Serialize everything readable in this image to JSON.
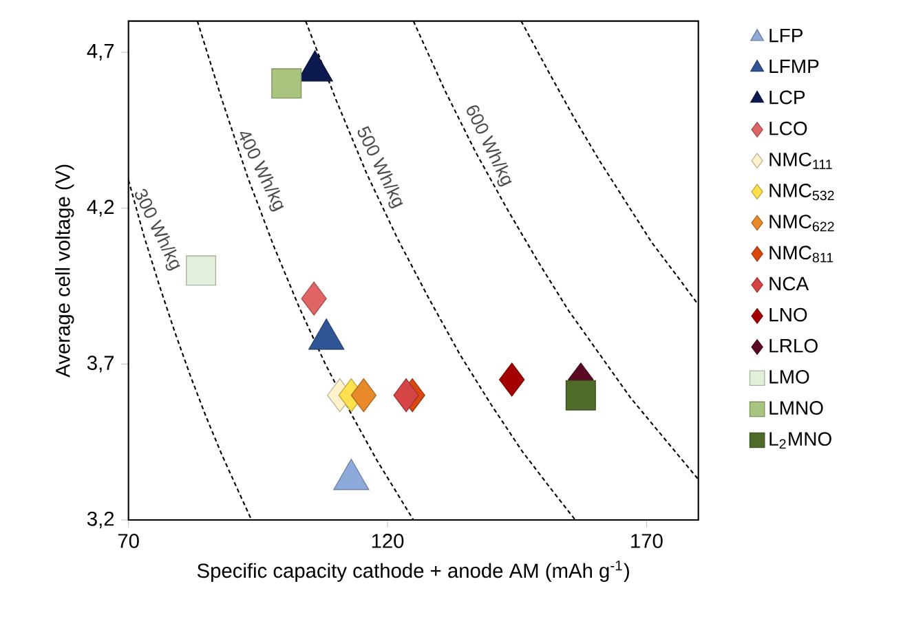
{
  "chart_data": {
    "type": "scatter",
    "xlabel": "Specific capacity cathode + anode AM (mAh g$^{-1}$)",
    "ylabel": "Average cell voltage (V)",
    "xlim": [
      70,
      180
    ],
    "ylim": [
      3.2,
      4.8
    ],
    "xticks": [
      70,
      120,
      170
    ],
    "yticks": [
      {
        "value": 3.2,
        "label": "3,2"
      },
      {
        "value": 3.7,
        "label": "3,7"
      },
      {
        "value": 4.2,
        "label": "4,2"
      },
      {
        "value": 4.7,
        "label": "4,7"
      }
    ],
    "grid": false,
    "legend": "right",
    "series": [
      {
        "name": "LFP",
        "color": "#8eaadb",
        "marker": "triangle",
        "x": [
          113
        ],
        "values": [
          3.33
        ]
      },
      {
        "name": "LFMP",
        "color": "#2f5597",
        "marker": "triangle",
        "x": [
          108.2
        ],
        "values": [
          3.78
        ]
      },
      {
        "name": "LCP",
        "color": "#0c1a4f",
        "marker": "triangle",
        "x": [
          106
        ],
        "values": [
          4.64
        ]
      },
      {
        "name": "LCO",
        "color": "#e06666",
        "marker": "diamond",
        "x": [
          105.8
        ],
        "values": [
          3.91
        ]
      },
      {
        "name": "NMC$_{111}$",
        "color": "#fff2cc",
        "marker": "diamond",
        "x": [
          110.8
        ],
        "values": [
          3.6
        ]
      },
      {
        "name": "NMC$_{532}$",
        "color": "#ffe04d",
        "marker": "diamond",
        "x": [
          113
        ],
        "values": [
          3.6
        ]
      },
      {
        "name": "NMC$_{622}$",
        "color": "#e8892a",
        "marker": "diamond",
        "x": [
          115.4
        ],
        "values": [
          3.6
        ]
      },
      {
        "name": "NMC$_{811}$",
        "color": "#d9480f",
        "marker": "diamond",
        "x": [
          124.8
        ],
        "values": [
          3.6
        ]
      },
      {
        "name": "NCA",
        "color": "#d64545",
        "marker": "diamond",
        "x": [
          123.6
        ],
        "values": [
          3.6
        ]
      },
      {
        "name": "LNO",
        "color": "#a50000",
        "marker": "diamond",
        "x": [
          144
        ],
        "values": [
          3.65
        ]
      },
      {
        "name": "LRLO",
        "color": "#5c0a24",
        "marker": "diamond",
        "x": [
          157.3
        ],
        "values": [
          3.65
        ]
      },
      {
        "name": "LMO",
        "color": "#e2efda",
        "marker": "square",
        "x": [
          84
        ],
        "values": [
          4.0
        ]
      },
      {
        "name": "LMNO",
        "color": "#a9c47f",
        "marker": "square",
        "x": [
          100.5
        ],
        "values": [
          4.6
        ]
      },
      {
        "name": "L$_{2}$MNO",
        "color": "#4e6b2a",
        "marker": "square",
        "x": [
          157.3
        ],
        "values": [
          3.6
        ]
      },
      {
        "type": "line",
        "color": "#000000",
        "line_style": "dashed",
        "marker": "none",
        "x": [
          70,
          73,
          76,
          79,
          82,
          85,
          88,
          91,
          93.75
        ],
        "values": [
          4.29,
          4.11,
          3.95,
          3.8,
          3.66,
          3.53,
          3.41,
          3.3,
          3.2
        ]
      },
      {
        "type": "line",
        "color": "#000000",
        "line_style": "dashed",
        "marker": "none",
        "x": [
          83.3,
          88,
          93,
          98,
          103,
          108,
          113,
          118,
          125
        ],
        "values": [
          4.8,
          4.55,
          4.3,
          4.08,
          3.88,
          3.7,
          3.54,
          3.39,
          3.2
        ]
      },
      {
        "type": "line",
        "color": "#000000",
        "line_style": "dashed",
        "marker": "none",
        "x": [
          104.2,
          110,
          116,
          122,
          128,
          134,
          140,
          146,
          152,
          156.25
        ],
        "values": [
          4.8,
          4.55,
          4.31,
          4.1,
          3.91,
          3.73,
          3.57,
          3.42,
          3.29,
          3.2
        ]
      },
      {
        "type": "line",
        "color": "#000000",
        "line_style": "dashed",
        "marker": "none",
        "x": [
          125,
          131,
          137,
          143,
          149,
          155,
          161,
          167,
          173,
          180
        ],
        "values": [
          4.8,
          4.58,
          4.38,
          4.2,
          4.03,
          3.87,
          3.73,
          3.59,
          3.47,
          3.33
        ]
      },
      {
        "type": "line",
        "color": "#000000",
        "line_style": "dashed",
        "marker": "none",
        "x": [
          145.8,
          151,
          156,
          161,
          166,
          171,
          176,
          180
        ],
        "values": [
          4.8,
          4.64,
          4.49,
          4.35,
          4.22,
          4.09,
          3.98,
          3.89
        ]
      }
    ],
    "annotations": [
      {
        "text": "300 Wh/kg",
        "x": 73,
        "y": 4.11
      },
      {
        "text": "400 Wh/kg",
        "x": 93,
        "y": 4.3
      },
      {
        "text": "500 Wh/kg",
        "x": 116,
        "y": 4.31
      },
      {
        "text": "600 Wh/kg",
        "x": 137,
        "y": 4.38
      }
    ]
  }
}
